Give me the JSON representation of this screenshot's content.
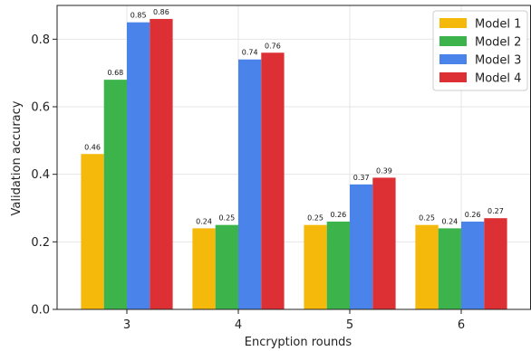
{
  "chart_data": {
    "type": "bar",
    "categories": [
      "3",
      "4",
      "5",
      "6"
    ],
    "series": [
      {
        "name": "Model 1",
        "color": "#f4b90a",
        "values": [
          0.46,
          0.24,
          0.25,
          0.25
        ],
        "labels": [
          "0.46",
          "0.24",
          "0.25",
          "0.25"
        ]
      },
      {
        "name": "Model 2",
        "color": "#3cb44b",
        "values": [
          0.68,
          0.25,
          0.26,
          0.24
        ],
        "labels": [
          "0.68",
          "0.25",
          "0.26",
          "0.24"
        ]
      },
      {
        "name": "Model 3",
        "color": "#4a84ea",
        "values": [
          0.85,
          0.74,
          0.37,
          0.26
        ],
        "labels": [
          "0.85",
          "0.74",
          "0.37",
          "0.26"
        ]
      },
      {
        "name": "Model 4",
        "color": "#dc3035",
        "values": [
          0.86,
          0.76,
          0.39,
          0.27
        ],
        "labels": [
          "0.86",
          "0.76",
          "0.39",
          "0.27"
        ]
      }
    ],
    "xlabel": "Encryption rounds",
    "ylabel": "Validation accuracy",
    "ylim": [
      0,
      0.9
    ],
    "yticks": [
      0.0,
      0.2,
      0.4,
      0.6,
      0.8
    ],
    "ytick_labels": [
      "0.0",
      "0.2",
      "0.4",
      "0.6",
      "0.8"
    ],
    "grid": true,
    "legend_position": "top-right"
  }
}
